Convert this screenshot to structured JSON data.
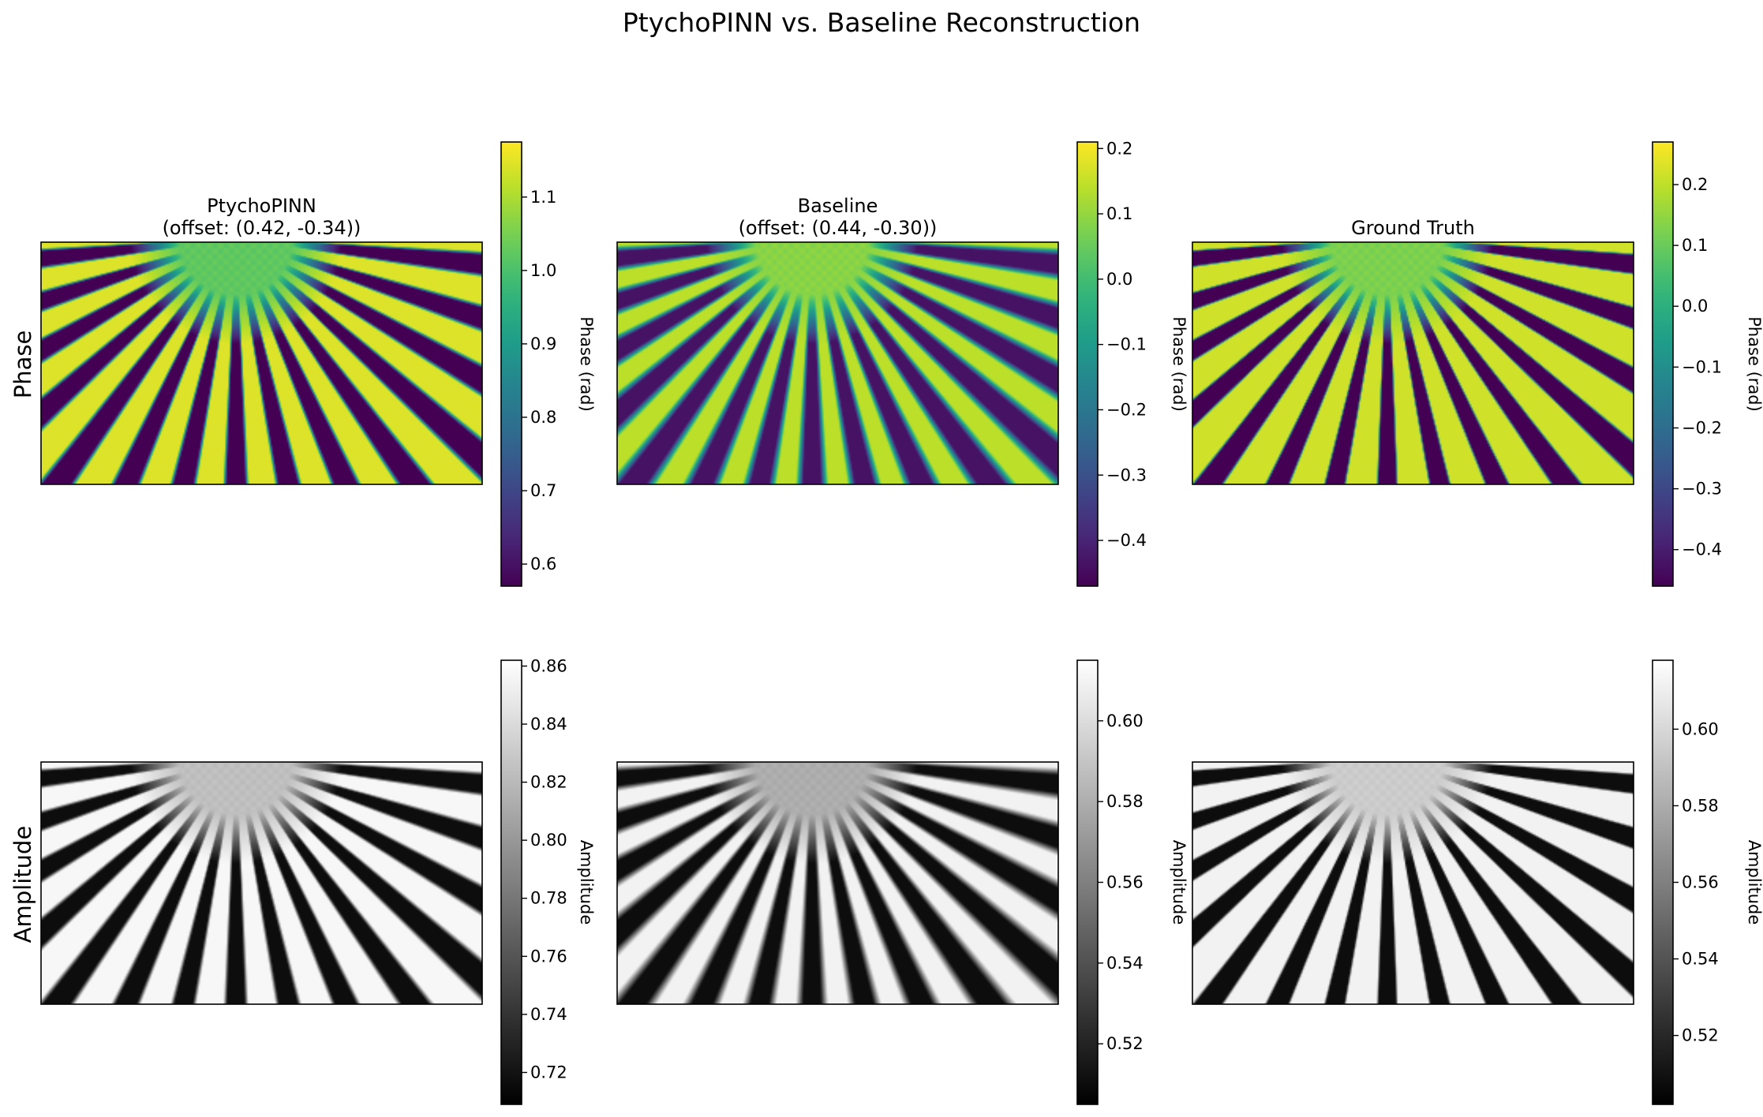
{
  "figure_title": "PtychoPINN vs. Baseline Reconstruction",
  "row_labels": [
    "Phase",
    "Amplitude"
  ],
  "column_titles": [
    [
      "PtychoPINN",
      "(offset: (0.42, -0.34))"
    ],
    [
      "Baseline",
      "(offset: (0.44, -0.30))"
    ],
    [
      "Ground Truth"
    ]
  ],
  "colors": {
    "viridis": [
      "#440154",
      "#482777",
      "#3e4989",
      "#31688e",
      "#26828e",
      "#1f9e89",
      "#35b779",
      "#6ece58",
      "#b5de2b",
      "#fde725"
    ],
    "gray": [
      "#000000",
      "#ffffff"
    ]
  },
  "chart_data": [
    {
      "type": "heatmap",
      "panel": "phase-ptychopinn",
      "colormap": "viridis",
      "title": [
        "PtychoPINN",
        "(offset: (0.42, -0.34))"
      ],
      "colorbar_label": "Phase (rad)",
      "colorbar_range": [
        0.57,
        1.175
      ],
      "colorbar_ticks": [
        0.6,
        0.7,
        0.8,
        0.9,
        1.0,
        1.1
      ],
      "colorbar_tick_labels": [
        "0.6",
        "0.7",
        "0.8",
        "0.9",
        "1.0",
        "1.1"
      ],
      "pattern": {
        "spokes": 30,
        "hub_level": 0.75,
        "dark_level": 0.0,
        "bright_level": 0.95,
        "duty": 0.45,
        "blur": 0.6
      }
    },
    {
      "type": "heatmap",
      "panel": "phase-baseline",
      "colormap": "viridis",
      "title": [
        "Baseline",
        "(offset: (0.44, -0.30))"
      ],
      "colorbar_label": "Phase (rad)",
      "colorbar_range": [
        -0.47,
        0.21
      ],
      "colorbar_ticks": [
        -0.4,
        -0.3,
        -0.2,
        -0.1,
        0.0,
        0.1,
        0.2
      ],
      "colorbar_tick_labels": [
        "−0.4",
        "−0.3",
        "−0.2",
        "−0.1",
        "0.0",
        "0.1",
        "0.2"
      ],
      "pattern": {
        "spokes": 30,
        "hub_level": 0.82,
        "dark_level": 0.05,
        "bright_level": 0.9,
        "duty": 0.5,
        "blur": 1.0
      }
    },
    {
      "type": "heatmap",
      "panel": "phase-ground-truth",
      "colormap": "viridis",
      "title": [
        "Ground Truth"
      ],
      "colorbar_label": "Phase (rad)",
      "colorbar_range": [
        -0.46,
        0.27
      ],
      "colorbar_ticks": [
        -0.4,
        -0.3,
        -0.2,
        -0.1,
        0.0,
        0.1,
        0.2
      ],
      "colorbar_tick_labels": [
        "−0.4",
        "−0.3",
        "−0.2",
        "−0.1",
        "0.0",
        "0.1",
        "0.2"
      ],
      "pattern": {
        "spokes": 30,
        "hub_level": 0.8,
        "dark_level": 0.0,
        "bright_level": 0.93,
        "duty": 0.5,
        "blur": 0.4
      }
    },
    {
      "type": "heatmap",
      "panel": "amplitude-ptychopinn",
      "colormap": "gray",
      "title": [],
      "colorbar_label": "Amplitude",
      "colorbar_range": [
        0.709,
        0.862
      ],
      "colorbar_ticks": [
        0.72,
        0.74,
        0.76,
        0.78,
        0.8,
        0.82,
        0.84,
        0.86
      ],
      "colorbar_tick_labels": [
        "0.72",
        "0.74",
        "0.76",
        "0.78",
        "0.80",
        "0.82",
        "0.84",
        "0.86"
      ],
      "pattern": {
        "spokes": 30,
        "hub_level": 0.75,
        "dark_level": 0.05,
        "bright_level": 0.97,
        "duty": 0.5,
        "blur": 0.6
      }
    },
    {
      "type": "heatmap",
      "panel": "amplitude-baseline",
      "colormap": "gray",
      "title": [],
      "colorbar_label": "Amplitude",
      "colorbar_range": [
        0.505,
        0.615
      ],
      "colorbar_ticks": [
        0.52,
        0.54,
        0.56,
        0.58,
        0.6
      ],
      "colorbar_tick_labels": [
        "0.52",
        "0.54",
        "0.56",
        "0.58",
        "0.60"
      ],
      "pattern": {
        "spokes": 30,
        "hub_level": 0.68,
        "dark_level": 0.05,
        "bright_level": 0.95,
        "duty": 0.5,
        "blur": 1.0
      }
    },
    {
      "type": "heatmap",
      "panel": "amplitude-ground-truth",
      "colormap": "gray",
      "title": [],
      "colorbar_label": "Amplitude",
      "colorbar_range": [
        0.502,
        0.618
      ],
      "colorbar_ticks": [
        0.52,
        0.54,
        0.56,
        0.58,
        0.6
      ],
      "colorbar_tick_labels": [
        "0.52",
        "0.54",
        "0.56",
        "0.58",
        "0.60"
      ],
      "pattern": {
        "spokes": 30,
        "hub_level": 0.8,
        "dark_level": 0.05,
        "bright_level": 0.95,
        "duty": 0.5,
        "blur": 0.4
      }
    }
  ]
}
